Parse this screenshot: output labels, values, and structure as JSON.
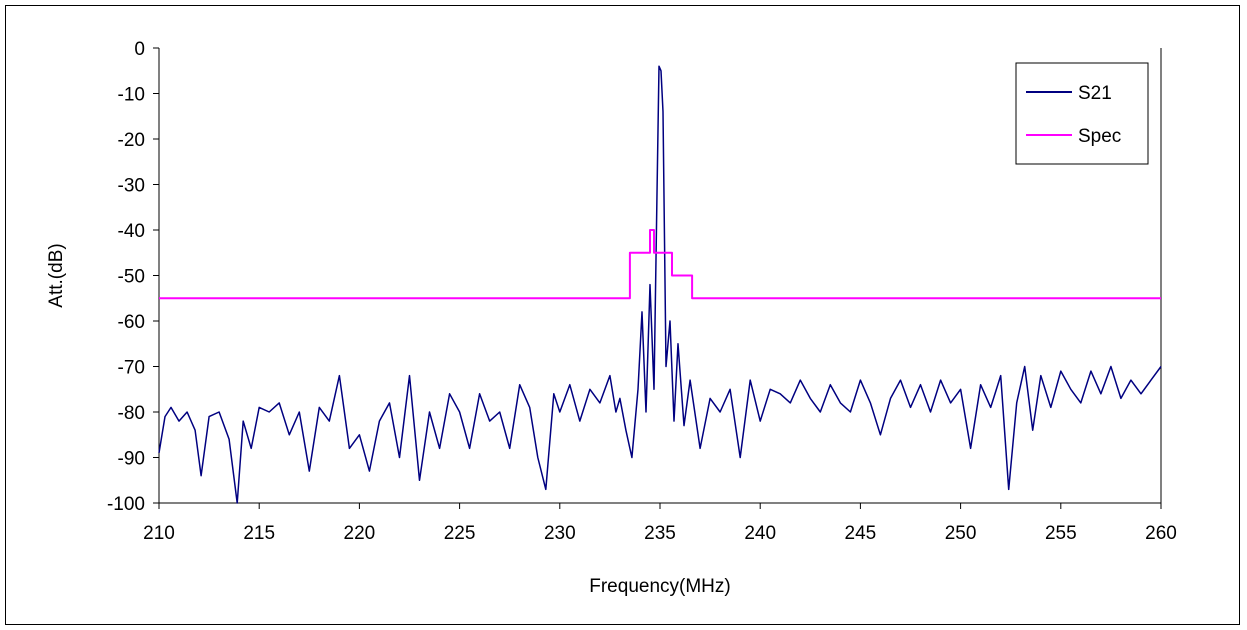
{
  "chart_data": {
    "type": "line",
    "title": "",
    "xlabel": "Frequency(MHz)",
    "ylabel": "Att.(dB)",
    "xlim": [
      210,
      260
    ],
    "ylim": [
      -100,
      0
    ],
    "x_ticks": [
      210,
      215,
      220,
      225,
      230,
      235,
      240,
      245,
      250,
      255,
      260
    ],
    "y_ticks": [
      0,
      -10,
      -20,
      -30,
      -40,
      -50,
      -60,
      -70,
      -80,
      -90,
      -100
    ],
    "grid": false,
    "legend_position": "top-right",
    "legend": [
      "S21",
      "Spec"
    ],
    "colors": {
      "S21": "#000080",
      "Spec": "#ff00ff"
    },
    "series": [
      {
        "name": "S21",
        "x": [
          210.0,
          210.3,
          210.6,
          211.0,
          211.4,
          211.8,
          212.1,
          212.5,
          213.0,
          213.5,
          213.9,
          214.2,
          214.6,
          215.0,
          215.5,
          216.0,
          216.5,
          217.0,
          217.5,
          218.0,
          218.5,
          219.0,
          219.5,
          220.0,
          220.5,
          221.0,
          221.5,
          222.0,
          222.5,
          223.0,
          223.5,
          224.0,
          224.5,
          225.0,
          225.5,
          226.0,
          226.5,
          227.0,
          227.5,
          228.0,
          228.5,
          228.9,
          229.3,
          229.7,
          230.0,
          230.5,
          231.0,
          231.5,
          232.0,
          232.5,
          232.8,
          233.0,
          233.3,
          233.6,
          233.9,
          234.1,
          234.3,
          234.5,
          234.7,
          234.85,
          234.95,
          235.05,
          235.15,
          235.3,
          235.5,
          235.7,
          235.9,
          236.2,
          236.5,
          237.0,
          237.5,
          238.0,
          238.5,
          239.0,
          239.5,
          240.0,
          240.5,
          241.0,
          241.5,
          242.0,
          242.5,
          243.0,
          243.5,
          244.0,
          244.5,
          245.0,
          245.5,
          246.0,
          246.5,
          247.0,
          247.5,
          248.0,
          248.5,
          249.0,
          249.5,
          250.0,
          250.5,
          251.0,
          251.5,
          252.0,
          252.4,
          252.8,
          253.2,
          253.6,
          254.0,
          254.5,
          255.0,
          255.5,
          256.0,
          256.5,
          257.0,
          257.5,
          258.0,
          258.5,
          259.0,
          259.5,
          260.0
        ],
        "values": [
          -89,
          -81,
          -79,
          -82,
          -80,
          -84,
          -94,
          -81,
          -80,
          -86,
          -100,
          -82,
          -88,
          -79,
          -80,
          -78,
          -85,
          -80,
          -93,
          -79,
          -82,
          -72,
          -88,
          -85,
          -93,
          -82,
          -78,
          -90,
          -72,
          -95,
          -80,
          -88,
          -76,
          -80,
          -88,
          -76,
          -82,
          -80,
          -88,
          -74,
          -79,
          -90,
          -97,
          -76,
          -80,
          -74,
          -82,
          -75,
          -78,
          -72,
          -80,
          -77,
          -84,
          -90,
          -75,
          -58,
          -80,
          -52,
          -75,
          -32,
          -4,
          -5,
          -14,
          -70,
          -60,
          -82,
          -65,
          -83,
          -73,
          -88,
          -77,
          -80,
          -75,
          -90,
          -73,
          -82,
          -75,
          -76,
          -78,
          -73,
          -77,
          -80,
          -74,
          -78,
          -80,
          -73,
          -78,
          -85,
          -77,
          -73,
          -79,
          -74,
          -80,
          -73,
          -78,
          -75,
          -88,
          -74,
          -79,
          -72,
          -97,
          -78,
          -70,
          -84,
          -72,
          -79,
          -71,
          -75,
          -78,
          -71,
          -76,
          -70,
          -77,
          -73,
          -76,
          -73,
          -70
        ]
      },
      {
        "name": "Spec",
        "x": [
          210,
          233.5,
          233.5,
          234.5,
          234.5,
          234.7,
          234.7,
          235.3,
          235.3,
          235.6,
          235.6,
          236.6,
          236.6,
          260
        ],
        "values": [
          -55,
          -55,
          -45,
          -45,
          -40,
          -40,
          -45,
          -45,
          -45,
          -45,
          -50,
          -50,
          -55,
          -55
        ]
      }
    ]
  }
}
